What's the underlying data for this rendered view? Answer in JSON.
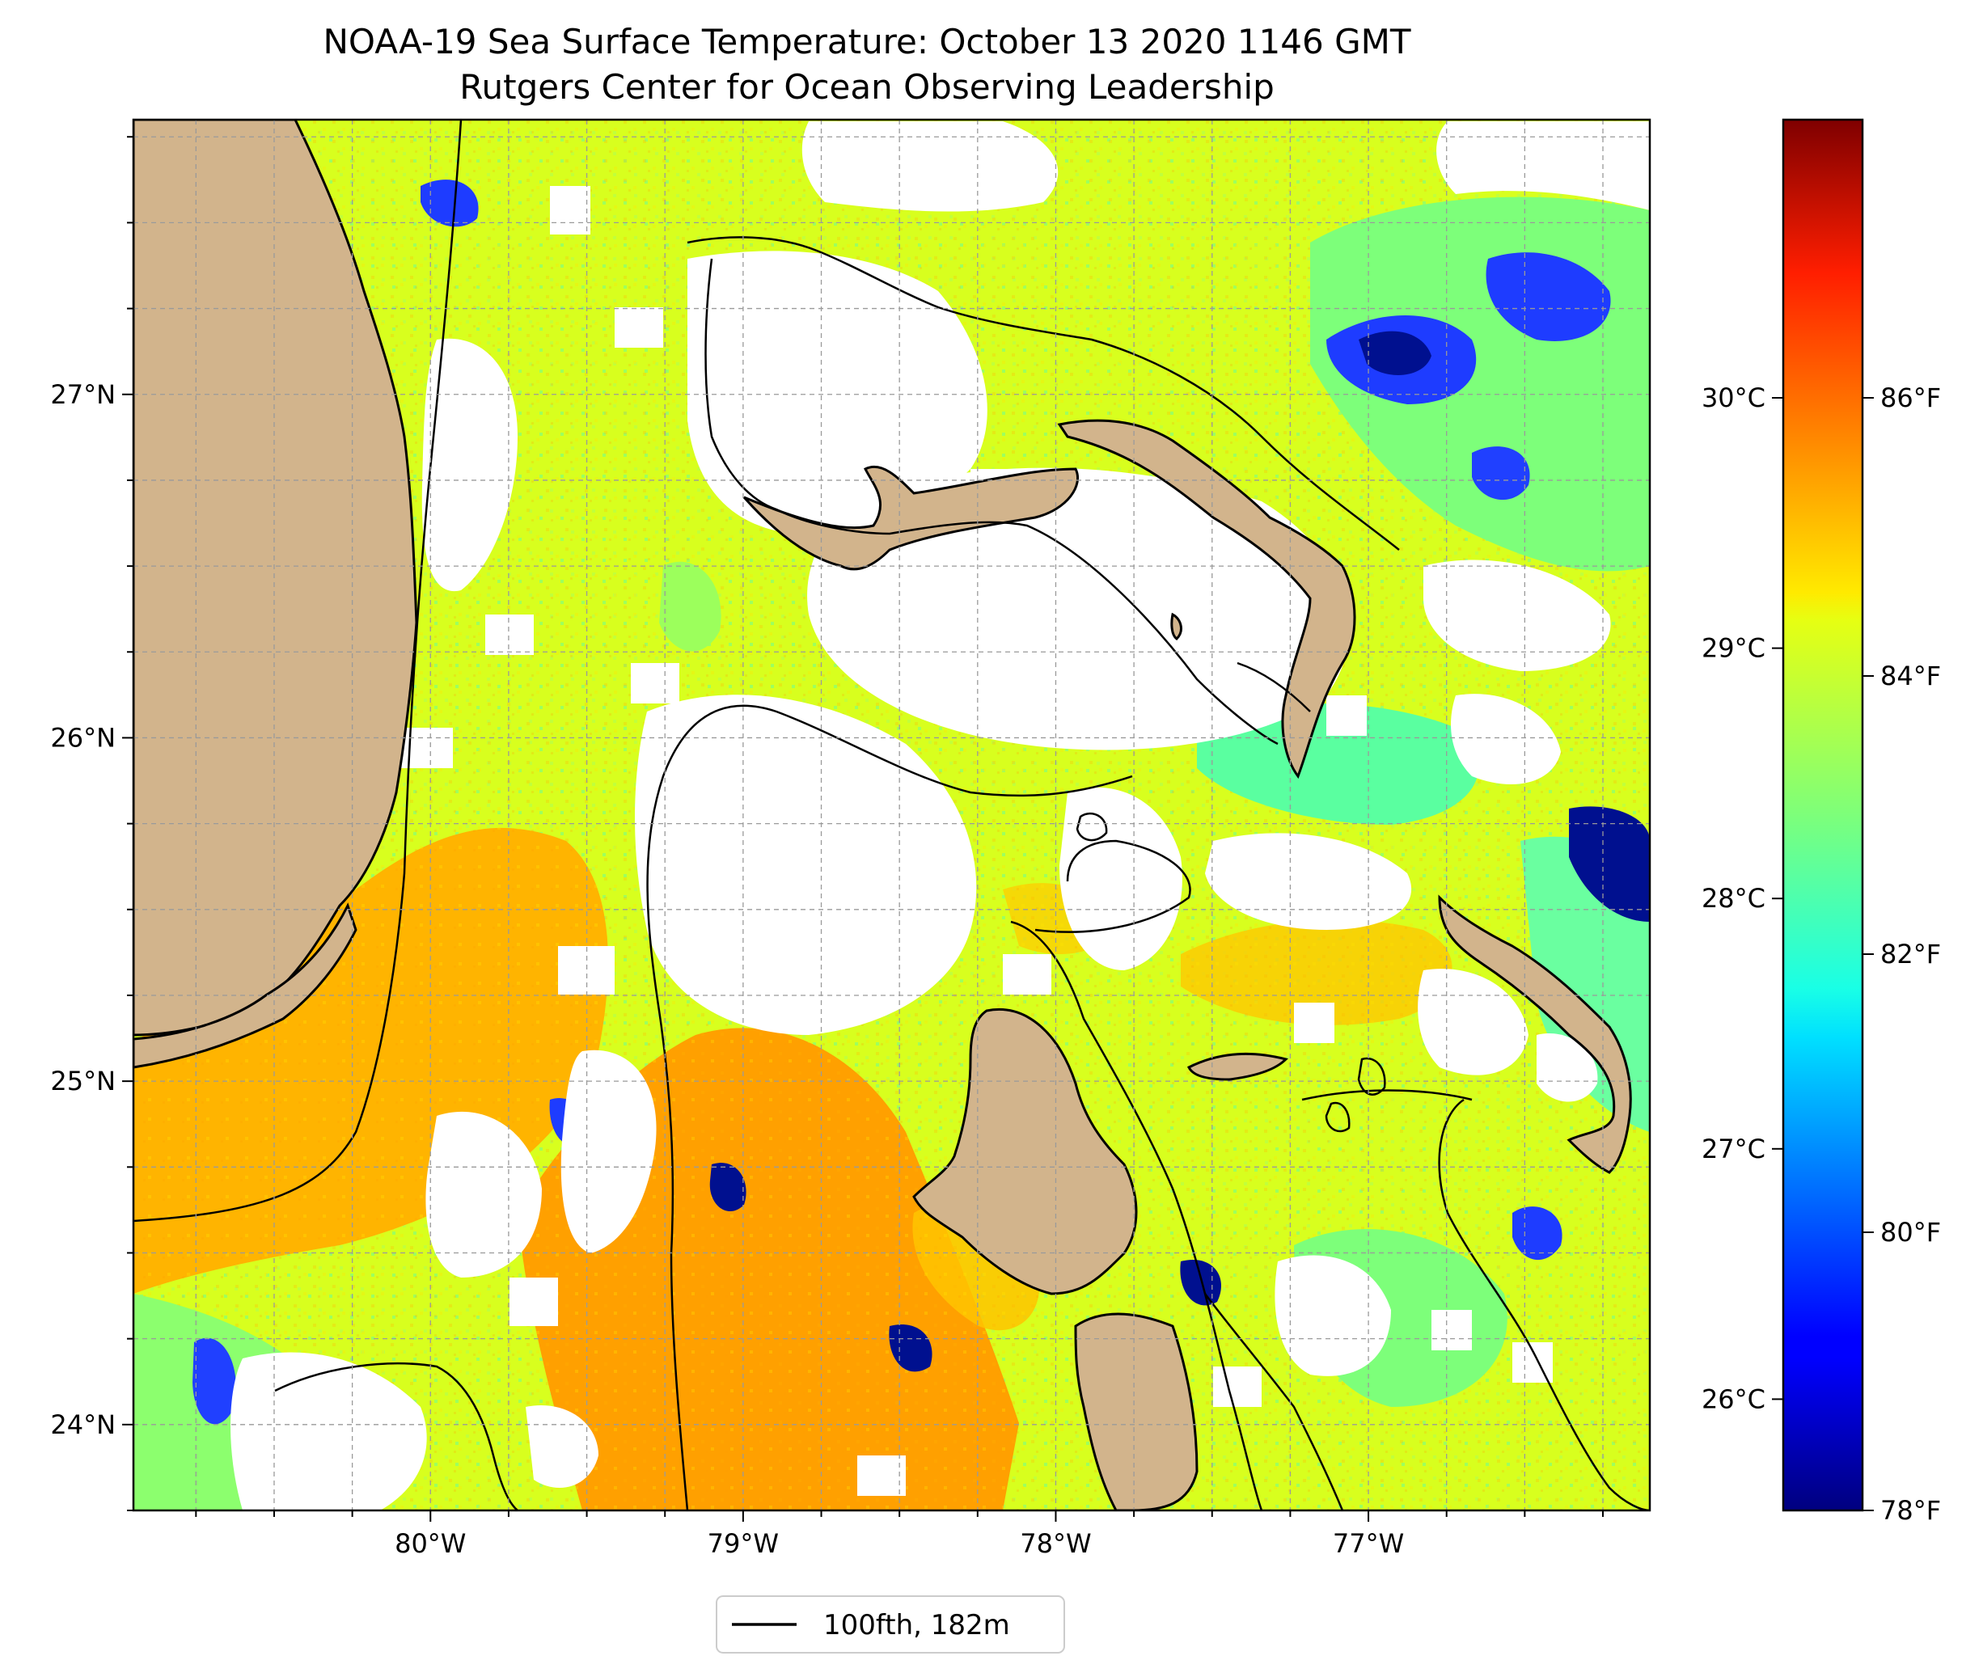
{
  "title": "NOAA-19 Sea Surface Temperature: October 13 2020 1146 GMT",
  "subtitle": "Rutgers Center for Ocean Observing Leadership",
  "map": {
    "lon_range": [
      -80.95,
      -76.1
    ],
    "lat_range": [
      23.75,
      27.8
    ],
    "lon_ticks": [
      {
        "value": -80,
        "label": "80°W"
      },
      {
        "value": -79,
        "label": "79°W"
      },
      {
        "value": -78,
        "label": "78°W"
      },
      {
        "value": -77,
        "label": "77°W"
      }
    ],
    "lat_ticks": [
      {
        "value": 24,
        "label": "24°N"
      },
      {
        "value": 25,
        "label": "25°N"
      },
      {
        "value": 26,
        "label": "26°N"
      },
      {
        "value": 27,
        "label": "27°N"
      }
    ],
    "gridlines": true,
    "land_color": "#d2b48c",
    "no_data_color": "#ffffff"
  },
  "colorbar": {
    "colormap": "jet",
    "celsius_ticks": [
      {
        "value": 26,
        "label": "26°C"
      },
      {
        "value": 27,
        "label": "27°C"
      },
      {
        "value": 28,
        "label": "28°C"
      },
      {
        "value": 29,
        "label": "29°C"
      },
      {
        "value": 30,
        "label": "30°C"
      }
    ],
    "fahrenheit_ticks": [
      {
        "value": 78,
        "label": "78°F"
      },
      {
        "value": 80,
        "label": "80°F"
      },
      {
        "value": 82,
        "label": "82°F"
      },
      {
        "value": 84,
        "label": "84°F"
      },
      {
        "value": 86,
        "label": "86°F"
      }
    ],
    "range_f": [
      78,
      88
    ]
  },
  "legend": {
    "label": "100fth, 182m",
    "line_color": "#000000",
    "placement": "bottom-center"
  }
}
